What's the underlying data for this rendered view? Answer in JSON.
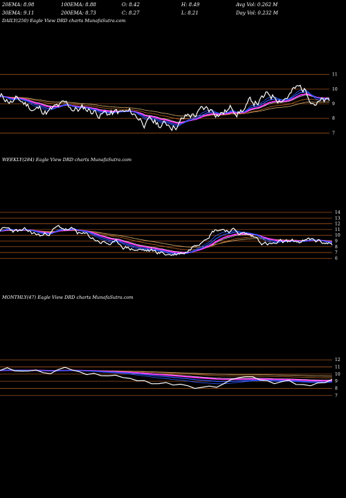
{
  "header": {
    "row1": [
      "20EMA: 8.98",
      "100EMA: 8.88",
      "O: 8.42",
      "H: 8.49",
      "Avg Vol: 0.262  M"
    ],
    "row2": [
      "30EMA: 9.11",
      "200EMA: 8.73",
      "C: 8.27",
      "L: 8.21",
      "Day Vol: 0.232  M"
    ]
  },
  "colors": {
    "background": "#000000",
    "price": "#ffffff",
    "ema_blue": "#2f5bff",
    "ema_magenta": "#ff3cff",
    "ema_orange": "#c06a2a",
    "ema_tan": "#d8b070",
    "grid_line": "#a0521c"
  },
  "chart_data": [
    {
      "type": "line",
      "title": "DAILY(250) Eagle  View  DRD charts MunafaSutra.com",
      "y_ticks": [
        "11",
        "10",
        "9",
        "8",
        "7"
      ],
      "ylim": [
        6.4,
        11.6
      ],
      "n": 250,
      "series": [
        {
          "values": [
            9.4,
            9.2,
            9.0,
            8.6,
            8.9,
            8.5,
            8.3,
            8.6,
            8.4,
            8.1,
            8.3,
            8.5,
            8.2,
            8.4,
            8.8,
            8.6,
            8.7,
            8.9,
            8.6,
            8.8,
            9.0,
            8.8,
            9.1,
            8.9,
            8.8,
            9.0,
            8.6,
            8.4,
            8.7,
            8.5,
            8.3,
            8.6,
            8.8,
            8.5,
            8.7,
            8.3,
            8.0,
            8.2,
            8.4,
            8.1,
            7.9,
            8.2,
            8.4,
            8.0,
            7.6,
            7.5,
            7.9,
            8.2,
            7.8,
            7.4,
            7.6,
            7.3,
            7.6,
            7.8,
            7.5,
            7.2,
            7.4,
            7.7,
            8.1,
            7.8,
            8.1,
            8.4,
            8.2,
            8.5,
            8.3,
            8.1,
            8.4,
            8.2,
            8.6,
            8.7,
            8.5,
            8.8,
            8.6,
            8.4,
            8.5,
            8.8,
            8.6,
            8.9,
            9.2,
            8.9,
            9.4,
            9.2,
            9.6,
            9.9,
            9.6,
            10.3,
            10.0,
            9.7,
            10.1,
            9.8,
            10.2,
            9.9,
            9.6,
            9.8,
            9.3,
            9.0,
            9.2,
            8.8,
            8.5,
            8.3,
            8.2
          ],
          "x_start": 0,
          "x_step": 2.49
        }
      ]
    },
    {
      "type": "line",
      "title": "WEEKLY(284) Eagle  View  DRD charts MunafaSutra.com",
      "y_ticks": [
        "14",
        "13",
        "12",
        "11",
        "10",
        "9",
        "8",
        "7",
        "6"
      ],
      "ylim": [
        5.2,
        14.6
      ]
    },
    {
      "type": "line",
      "title": "MONTHLY(47) Eagle  View  DRD charts MunafaSutra.com",
      "y_ticks": [
        "12",
        "11",
        "10",
        "9",
        "8",
        "7"
      ],
      "ylim": [
        6.2,
        12.8
      ]
    }
  ]
}
